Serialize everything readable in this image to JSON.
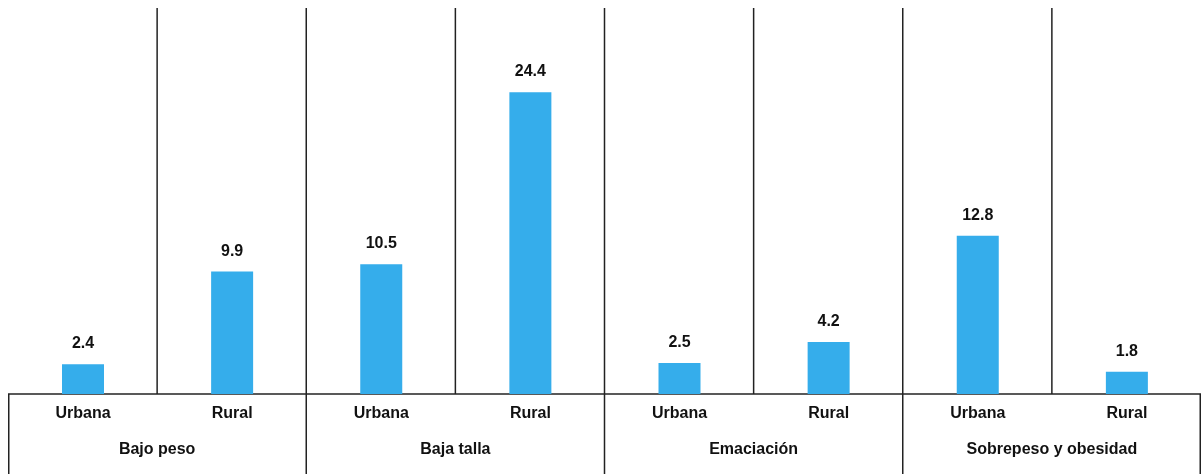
{
  "chart_data": {
    "type": "bar",
    "categories": [
      "Bajo peso",
      "Baja talla",
      "Emaciación",
      "Sobrepeso y obesidad"
    ],
    "series": [
      {
        "name": "Urbana",
        "color": "#35adeb",
        "values": [
          2.4,
          10.5,
          2.5,
          12.8
        ]
      },
      {
        "name": "Rural",
        "color": "#35adeb",
        "values": [
          9.9,
          24.4,
          4.2,
          1.8
        ]
      }
    ],
    "data_labels": true,
    "grid": "x"
  }
}
